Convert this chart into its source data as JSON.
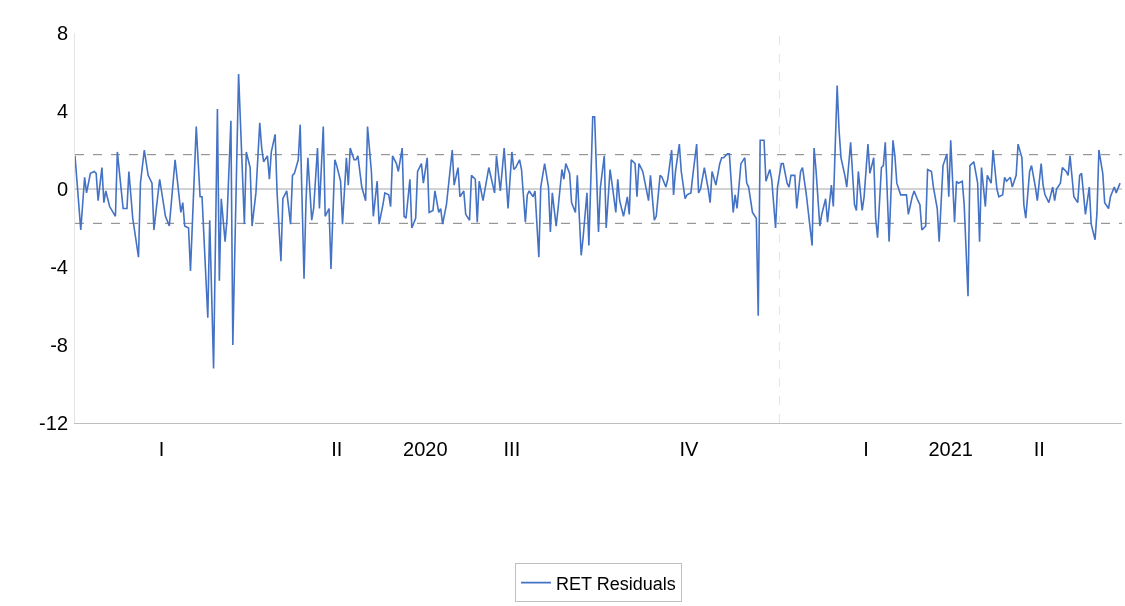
{
  "chart_data": {
    "type": "line",
    "xlim": [
      "2020-01-01",
      "2021-06-28"
    ],
    "xticks": [
      {
        "value": "2020-02-15",
        "label": "I"
      },
      {
        "value": "2020-05-16",
        "label": "II"
      },
      {
        "value": "2020-07-01",
        "label": "2020"
      },
      {
        "value": "2020-08-15",
        "label": "III"
      },
      {
        "value": "2020-11-15",
        "label": "IV"
      },
      {
        "value": "2021-02-15",
        "label": "I"
      },
      {
        "value": "2021-03-31",
        "label": "2021"
      },
      {
        "value": "2021-05-16",
        "label": "II"
      }
    ],
    "ylim": [
      -12,
      8
    ],
    "yticks": [
      -12,
      -8,
      -4,
      0,
      4,
      8
    ],
    "legend": "bottom",
    "x": [
      "2020-01-01",
      "2020-01-04",
      "2020-01-06",
      "2020-01-07",
      "2020-01-09",
      "2020-01-11",
      "2020-01-12",
      "2020-01-13",
      "2020-01-15",
      "2020-01-16",
      "2020-01-17",
      "2020-01-19",
      "2020-01-22",
      "2020-01-23",
      "2020-01-26",
      "2020-01-28",
      "2020-01-29",
      "2020-01-31",
      "2020-02-03",
      "2020-02-04",
      "2020-02-06",
      "2020-02-08",
      "2020-02-10",
      "2020-02-11",
      "2020-02-14",
      "2020-02-17",
      "2020-02-19",
      "2020-02-22",
      "2020-02-25",
      "2020-02-26",
      "2020-02-27",
      "2020-02-29",
      "2020-03-01",
      "2020-03-04",
      "2020-03-06",
      "2020-03-07",
      "2020-03-10",
      "2020-03-11",
      "2020-03-13",
      "2020-03-15",
      "2020-03-16",
      "2020-03-17",
      "2020-03-19",
      "2020-03-20",
      "2020-03-22",
      "2020-03-23",
      "2020-03-26",
      "2020-03-29",
      "2020-03-30",
      "2020-04-01",
      "2020-04-02",
      "2020-04-04",
      "2020-04-06",
      "2020-04-07",
      "2020-04-08",
      "2020-04-10",
      "2020-04-11",
      "2020-04-12",
      "2020-04-14",
      "2020-04-15",
      "2020-04-17",
      "2020-04-18",
      "2020-04-20",
      "2020-04-22",
      "2020-04-23",
      "2020-04-24",
      "2020-04-26",
      "2020-04-27",
      "2020-04-29",
      "2020-04-30",
      "2020-05-01",
      "2020-05-03",
      "2020-05-04",
      "2020-05-06",
      "2020-05-07",
      "2020-05-09",
      "2020-05-10",
      "2020-05-12",
      "2020-05-13",
      "2020-05-15",
      "2020-05-16",
      "2020-05-18",
      "2020-05-19",
      "2020-05-21",
      "2020-05-22",
      "2020-05-23",
      "2020-05-25",
      "2020-05-26",
      "2020-05-27",
      "2020-05-29",
      "2020-05-31",
      "2020-06-01",
      "2020-06-03",
      "2020-06-04",
      "2020-06-06",
      "2020-06-07",
      "2020-06-09",
      "2020-06-10",
      "2020-06-12",
      "2020-06-13",
      "2020-06-14",
      "2020-06-16",
      "2020-06-17",
      "2020-06-19",
      "2020-06-20",
      "2020-06-21",
      "2020-06-23",
      "2020-06-24",
      "2020-06-26",
      "2020-06-27",
      "2020-06-29",
      "2020-06-30",
      "2020-07-02",
      "2020-07-03",
      "2020-07-05",
      "2020-07-06",
      "2020-07-08",
      "2020-07-09",
      "2020-07-10",
      "2020-07-12",
      "2020-07-15",
      "2020-07-16",
      "2020-07-18",
      "2020-07-19",
      "2020-07-21",
      "2020-07-22",
      "2020-07-24",
      "2020-07-25",
      "2020-07-27",
      "2020-07-28",
      "2020-07-29",
      "2020-07-31",
      "2020-08-03",
      "2020-08-06",
      "2020-08-07",
      "2020-08-09",
      "2020-08-11",
      "2020-08-13",
      "2020-08-15",
      "2020-08-16",
      "2020-08-17",
      "2020-08-19",
      "2020-08-20",
      "2020-08-22",
      "2020-08-23",
      "2020-08-24",
      "2020-08-26",
      "2020-08-27",
      "2020-08-29",
      "2020-08-30",
      "2020-09-01",
      "2020-09-03",
      "2020-09-04",
      "2020-09-05",
      "2020-09-07",
      "2020-09-08",
      "2020-09-10",
      "2020-09-11",
      "2020-09-12",
      "2020-09-14",
      "2020-09-15",
      "2020-09-17",
      "2020-09-18",
      "2020-09-20",
      "2020-09-21",
      "2020-09-23",
      "2020-09-24",
      "2020-09-26",
      "2020-09-27",
      "2020-09-29",
      "2020-09-30",
      "2020-10-02",
      "2020-10-03",
      "2020-10-05",
      "2020-10-06",
      "2020-10-08",
      "2020-10-09",
      "2020-10-10",
      "2020-10-12",
      "2020-10-14",
      "2020-10-15",
      "2020-10-16",
      "2020-10-18",
      "2020-10-19",
      "2020-10-20",
      "2020-10-22",
      "2020-10-23",
      "2020-10-25",
      "2020-10-26",
      "2020-10-28",
      "2020-10-29",
      "2020-10-31",
      "2020-11-01",
      "2020-11-03",
      "2020-11-04",
      "2020-11-06",
      "2020-11-07",
      "2020-11-08",
      "2020-11-10",
      "2020-11-11",
      "2020-11-13",
      "2020-11-14",
      "2020-11-16",
      "2020-11-17",
      "2020-11-19",
      "2020-11-20",
      "2020-11-21",
      "2020-11-23",
      "2020-11-25",
      "2020-11-26",
      "2020-11-27",
      "2020-11-29",
      "2020-12-01",
      "2020-12-02",
      "2020-12-03",
      "2020-12-05",
      "2020-12-06",
      "2020-12-08",
      "2020-12-09",
      "2020-12-10",
      "2020-12-12",
      "2020-12-14",
      "2020-12-15",
      "2020-12-16",
      "2020-12-18",
      "2020-12-20",
      "2020-12-21",
      "2020-12-22",
      "2020-12-24",
      "2020-12-25",
      "2020-12-27",
      "2020-12-28",
      "2020-12-30",
      "2020-12-31",
      "2021-01-02",
      "2021-01-03",
      "2021-01-05",
      "2021-01-06",
      "2021-01-07",
      "2021-01-09",
      "2021-01-10",
      "2021-01-12",
      "2021-01-13",
      "2021-01-15",
      "2021-01-18",
      "2021-01-19",
      "2021-01-20",
      "2021-01-22",
      "2021-01-23",
      "2021-01-25",
      "2021-01-26",
      "2021-01-28",
      "2021-01-29",
      "2021-01-31",
      "2021-02-01",
      "2021-02-02",
      "2021-02-04",
      "2021-02-05",
      "2021-02-07",
      "2021-02-09",
      "2021-02-10",
      "2021-02-11",
      "2021-02-13",
      "2021-02-14",
      "2021-02-16",
      "2021-02-17",
      "2021-02-19",
      "2021-02-20",
      "2021-02-21",
      "2021-02-23",
      "2021-02-24",
      "2021-02-25",
      "2021-02-27",
      "2021-03-01",
      "2021-03-02",
      "2021-03-03",
      "2021-03-05",
      "2021-03-07",
      "2021-03-08",
      "2021-03-09",
      "2021-03-11",
      "2021-03-12",
      "2021-03-14",
      "2021-03-15",
      "2021-03-16",
      "2021-03-18",
      "2021-03-19",
      "2021-03-21",
      "2021-03-22",
      "2021-03-24",
      "2021-03-25",
      "2021-03-27",
      "2021-03-29",
      "2021-03-30",
      "2021-03-31",
      "2021-04-02",
      "2021-04-03",
      "2021-04-04",
      "2021-04-06",
      "2021-04-07",
      "2021-04-09",
      "2021-04-10",
      "2021-04-12",
      "2021-04-14",
      "2021-04-15",
      "2021-04-16",
      "2021-04-18",
      "2021-04-19",
      "2021-04-21",
      "2021-04-22",
      "2021-04-24",
      "2021-04-25",
      "2021-04-27",
      "2021-04-28",
      "2021-04-29",
      "2021-05-01",
      "2021-05-02",
      "2021-05-04",
      "2021-05-05",
      "2021-05-07",
      "2021-05-08",
      "2021-05-09",
      "2021-05-11",
      "2021-05-12",
      "2021-05-14",
      "2021-05-15",
      "2021-05-17",
      "2021-05-18",
      "2021-05-19",
      "2021-05-21",
      "2021-05-23",
      "2021-05-24",
      "2021-05-25",
      "2021-05-27",
      "2021-05-28",
      "2021-05-30",
      "2021-05-31",
      "2021-06-01",
      "2021-06-03",
      "2021-06-05",
      "2021-06-06",
      "2021-06-07",
      "2021-06-09",
      "2021-06-11",
      "2021-06-12",
      "2021-06-14",
      "2021-06-15",
      "2021-06-16",
      "2021-06-18",
      "2021-06-19",
      "2021-06-21",
      "2021-06-22",
      "2021-06-24",
      "2021-06-25",
      "2021-06-27"
    ],
    "series": [
      {
        "name": "RET Residuals",
        "color": "#4472c4",
        "values": [
          1.7,
          -2.1,
          0.6,
          -0.2,
          0.8,
          0.9,
          0.8,
          -0.6,
          1.1,
          -0.7,
          -0.1,
          -0.9,
          -1.4,
          1.9,
          -1.0,
          -1.0,
          0.9,
          -1.5,
          -3.5,
          0.3,
          2.0,
          0.7,
          0.3,
          -2.1,
          0.5,
          -1.4,
          -1.9,
          1.5,
          -1.2,
          -0.7,
          -1.9,
          -2.0,
          -4.2,
          3.2,
          -0.4,
          -0.4,
          -6.6,
          -1.6,
          -9.2,
          4.1,
          -4.7,
          -0.5,
          -2.7,
          -1.5,
          3.5,
          -8.0,
          5.9,
          -1.8,
          1.9,
          1.1,
          -1.9,
          -0.2,
          3.4,
          2.1,
          1.4,
          1.7,
          0.5,
          1.9,
          2.8,
          -0.2,
          -3.7,
          -0.5,
          -0.1,
          -1.8,
          0.7,
          0.8,
          1.5,
          3.3,
          -4.6,
          -0.7,
          1.6,
          -1.6,
          -1.0,
          2.1,
          -1.0,
          3.2,
          -1.4,
          -1.0,
          -4.1,
          1.5,
          1.2,
          0.4,
          -1.8,
          1.6,
          0.2,
          2.1,
          1.5,
          1.5,
          1.7,
          0.1,
          -0.6,
          3.2,
          0.9,
          -1.4,
          0.4,
          -1.8,
          -0.8,
          -0.2,
          -0.3,
          -0.9,
          1.7,
          1.3,
          0.9,
          2.1,
          -1.4,
          -1.5,
          0.5,
          -2.0,
          -1.5,
          0.9,
          1.3,
          0.3,
          1.6,
          -1.2,
          -1.1,
          -0.1,
          -1.2,
          -1.0,
          -1.8,
          -0.8,
          2.0,
          0.2,
          1.1,
          -0.4,
          -0.1,
          -1.3,
          -1.6,
          0.7,
          0.5,
          -1.7,
          0.4,
          -0.6,
          1.1,
          -0.2,
          1.7,
          -0.1,
          2.1,
          -1.0,
          1.9,
          1.0,
          1.1,
          1.5,
          1.0,
          -1.7,
          -0.3,
          -0.1,
          -0.4,
          -0.1,
          -3.5,
          0.1,
          1.3,
          0.1,
          -2.2,
          -0.2,
          -1.9,
          -1.0,
          1.0,
          0.5,
          1.3,
          0.8,
          -0.7,
          -1.2,
          0.7,
          -3.4,
          -2.5,
          -0.2,
          -2.9,
          3.7,
          3.7,
          -2.2,
          0.1,
          1.7,
          -2.0,
          1.0,
          0.3,
          -1.2,
          0.5,
          -0.6,
          -1.4,
          -0.4,
          -1.3,
          1.5,
          1.3,
          -0.4,
          1.3,
          0.9,
          0.4,
          -0.6,
          0.7,
          -1.6,
          -1.4,
          0.7,
          0.6,
          0.1,
          0.5,
          2.0,
          -0.3,
          0.9,
          2.3,
          0.9,
          -0.5,
          -0.3,
          -0.2,
          0.7,
          2.3,
          -0.2,
          0.0,
          1.1,
          0.0,
          -0.7,
          0.9,
          0.2,
          1.3,
          1.6,
          1.6,
          1.8,
          1.8,
          -1.2,
          -0.3,
          -1.0,
          1.3,
          1.6,
          0.3,
          0.1,
          -1.2,
          -1.5,
          -6.5,
          2.5,
          2.5,
          0.4,
          1.0,
          0.5,
          -2.0,
          0.1,
          1.3,
          1.3,
          0.3,
          0.1,
          0.7,
          0.7,
          -1.0,
          0.9,
          1.1,
          -0.3,
          -2.9,
          2.1,
          1.0,
          -1.9,
          -1.3,
          -0.5,
          -1.7,
          0.2,
          -0.9,
          5.3,
          3.0,
          1.6,
          0.7,
          0.1,
          2.4,
          -0.8,
          -1.1,
          0.9,
          -1.1,
          -0.4,
          2.3,
          0.8,
          1.6,
          -1.5,
          -2.5,
          1.1,
          1.2,
          2.4,
          -2.7,
          2.5,
          1.7,
          0.3,
          -0.3,
          -0.3,
          -0.3,
          -1.3,
          -0.4,
          -0.1,
          -0.6,
          -0.8,
          -2.1,
          -1.9,
          1.0,
          0.9,
          0.1,
          -1.0,
          -2.7,
          1.2,
          1.8,
          -0.4,
          2.5,
          -1.7,
          0.4,
          0.3,
          0.4,
          -0.8,
          -5.5,
          1.2,
          1.4,
          0.3,
          -2.7,
          1.1,
          -0.9,
          0.7,
          0.3,
          2.0,
          0.0,
          -0.4,
          -0.3,
          0.6,
          0.4,
          0.6,
          0.1,
          0.7,
          2.3,
          1.6,
          -0.8,
          -1.5,
          0.9,
          1.2,
          0.1,
          -0.6,
          1.3,
          0.2,
          -0.3,
          -0.7,
          0.1,
          -0.6,
          0.0,
          0.3,
          1.1,
          0.9,
          0.7,
          1.7,
          -0.4,
          -0.7,
          0.7,
          0.8,
          -1.3,
          0.1,
          -1.8,
          -2.6,
          -1.2,
          2.0,
          0.8,
          -0.7,
          -1.0,
          -0.4,
          0.1,
          -0.2,
          0.3
        ]
      }
    ],
    "ref_lines": [
      {
        "axis": "y",
        "value": 0,
        "color": "#a6a6a6",
        "line_style": "solid"
      },
      {
        "axis": "y",
        "value": 1.76,
        "color": "#808080",
        "line_style": "dashed"
      },
      {
        "axis": "y",
        "value": -1.76,
        "color": "#808080",
        "line_style": "dashed"
      },
      {
        "axis": "x",
        "value": "2021-01-01",
        "color": "#e4e4e4",
        "line_style": "dashed"
      }
    ]
  }
}
